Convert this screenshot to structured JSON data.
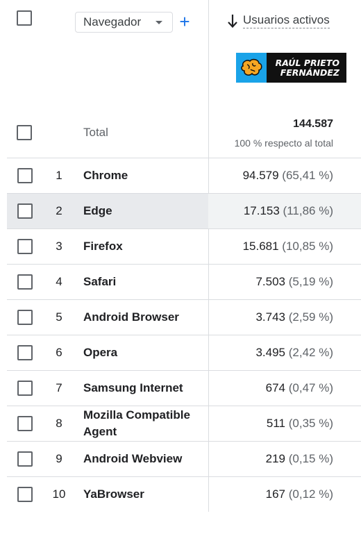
{
  "header": {
    "dimension_select_label": "Navegador",
    "add_button_label": "+",
    "metric_label": "Usuarios activos",
    "sort_icon": "arrow-down-icon"
  },
  "logo": {
    "line1": "RAÚL PRIETO",
    "line2": "FERNÁNDEZ",
    "colors": {
      "background": "#111111",
      "mark": "#1aa3e8",
      "brain": "#f5a623"
    }
  },
  "totals": {
    "label": "Total",
    "value": "144.587",
    "subtitle": "100 % respecto al total"
  },
  "rows": [
    {
      "index": "1",
      "name": "Chrome",
      "value": "94.579",
      "percent": "(65,41 %)"
    },
    {
      "index": "2",
      "name": "Edge",
      "value": "17.153",
      "percent": "(11,86 %)"
    },
    {
      "index": "3",
      "name": "Firefox",
      "value": "15.681",
      "percent": "(10,85 %)"
    },
    {
      "index": "4",
      "name": "Safari",
      "value": "7.503",
      "percent": "(5,19 %)"
    },
    {
      "index": "5",
      "name": "Android Browser",
      "value": "3.743",
      "percent": "(2,59 %)"
    },
    {
      "index": "6",
      "name": "Opera",
      "value": "3.495",
      "percent": "(2,42 %)"
    },
    {
      "index": "7",
      "name": "Samsung Internet",
      "value": "674",
      "percent": "(0,47 %)"
    },
    {
      "index": "8",
      "name": "Mozilla Compatible Agent",
      "value": "511",
      "percent": "(0,35 %)"
    },
    {
      "index": "9",
      "name": "Android Webview",
      "value": "219",
      "percent": "(0,15 %)"
    },
    {
      "index": "10",
      "name": "YaBrowser",
      "value": "167",
      "percent": "(0,12 %)"
    }
  ],
  "colors": {
    "accent": "#1a73e8",
    "hover_row": "#e8eaed",
    "divider": "#dadce0"
  }
}
